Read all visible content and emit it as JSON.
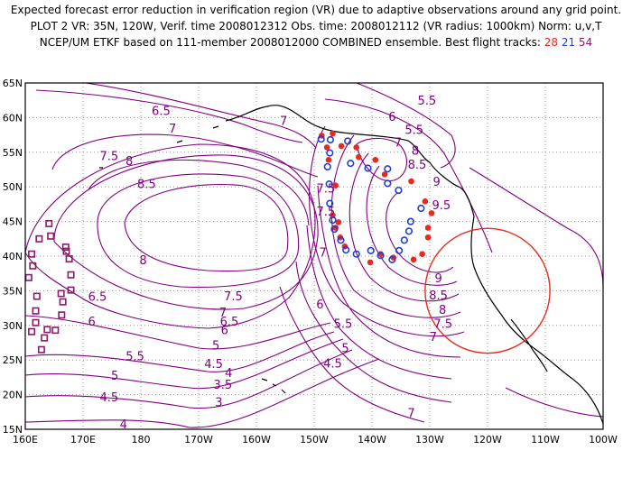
{
  "header": {
    "line1": "Expected forecast error reduction in verification region (VR) due to adaptive observations around any grid point.",
    "line2": "PLOT 2 VR: 35N, 120W, Verif. time 2008012312 Obs. time: 2008012112 (VR radius: 1000km) Norm: u,v,T",
    "line3_prefix": "NCEP/UM ETKF based on 111-member 2008012000 COMBINED ensemble.  Best flight tracks:",
    "track_a": "28",
    "track_b": "21",
    "track_c": "54"
  },
  "colors": {
    "contour": "#800080",
    "coast": "#000000",
    "grid": "#9a9a9a",
    "track_28": "#e8291f",
    "track_21": "#1f3fd8",
    "track_54": "#8b1a6b",
    "verification_circle": "#e8291f"
  },
  "map": {
    "lat_range": [
      15,
      65
    ],
    "lon_range": [
      160,
      260
    ],
    "lat_labels": [
      "65N",
      "60N",
      "55N",
      "50N",
      "45N",
      "40N",
      "35N",
      "30N",
      "25N",
      "20N",
      "15N"
    ],
    "lon_labels": [
      "160E",
      "170E",
      "180",
      "170W",
      "160W",
      "150W",
      "140W",
      "130W",
      "120W",
      "110W",
      "100W"
    ],
    "contour_labels": [
      {
        "text": "6.5",
        "lon": 183.5,
        "lat": 61
      },
      {
        "text": "7",
        "lon": 185.5,
        "lat": 58.5
      },
      {
        "text": "7.5",
        "lon": 174.5,
        "lat": 54.5
      },
      {
        "text": "8",
        "lon": 178,
        "lat": 53.8
      },
      {
        "text": "8.5",
        "lon": 181,
        "lat": 50.5
      },
      {
        "text": "8",
        "lon": 180.4,
        "lat": 39.5
      },
      {
        "text": "7.5",
        "lon": 196,
        "lat": 34.3
      },
      {
        "text": "6.5",
        "lon": 172.5,
        "lat": 34.2
      },
      {
        "text": "7",
        "lon": 194.2,
        "lat": 31.9
      },
      {
        "text": "6",
        "lon": 171.5,
        "lat": 30.6
      },
      {
        "text": "6.5",
        "lon": 195.3,
        "lat": 30.6
      },
      {
        "text": "6",
        "lon": 194.5,
        "lat": 29.4
      },
      {
        "text": "5.5",
        "lon": 179,
        "lat": 25.6
      },
      {
        "text": "5",
        "lon": 193,
        "lat": 27.2
      },
      {
        "text": "4.5",
        "lon": 192.6,
        "lat": 24.5
      },
      {
        "text": "5",
        "lon": 175.5,
        "lat": 22.8
      },
      {
        "text": "4",
        "lon": 195.2,
        "lat": 23.2
      },
      {
        "text": "3.5",
        "lon": 194.2,
        "lat": 21.5
      },
      {
        "text": "4.5",
        "lon": 174.5,
        "lat": 19.7
      },
      {
        "text": "3",
        "lon": 193.5,
        "lat": 19
      },
      {
        "text": "4",
        "lon": 177,
        "lat": 15.8
      },
      {
        "text": "5.5",
        "lon": 229.5,
        "lat": 62.5
      },
      {
        "text": "7",
        "lon": 204.7,
        "lat": 59.6
      },
      {
        "text": "6",
        "lon": 223.5,
        "lat": 60.2
      },
      {
        "text": "5.5",
        "lon": 227.3,
        "lat": 58.3
      },
      {
        "text": "7",
        "lon": 224.5,
        "lat": 56.5
      },
      {
        "text": "8",
        "lon": 227.5,
        "lat": 55.3
      },
      {
        "text": "8.5",
        "lon": 227.8,
        "lat": 53.3
      },
      {
        "text": "9",
        "lon": 231.2,
        "lat": 50.8
      },
      {
        "text": "7.5",
        "lon": 212,
        "lat": 49.8
      },
      {
        "text": "9.5",
        "lon": 232,
        "lat": 47.4
      },
      {
        "text": "7.5",
        "lon": 212,
        "lat": 46.5
      },
      {
        "text": "7",
        "lon": 211.5,
        "lat": 40.6
      },
      {
        "text": "9",
        "lon": 231.5,
        "lat": 36.9
      },
      {
        "text": "8.5",
        "lon": 231.5,
        "lat": 34.4
      },
      {
        "text": "8",
        "lon": 232.2,
        "lat": 32.3
      },
      {
        "text": "7.5",
        "lon": 232.3,
        "lat": 30.3
      },
      {
        "text": "7",
        "lon": 230.6,
        "lat": 28.4
      },
      {
        "text": "6",
        "lon": 211,
        "lat": 33.1
      },
      {
        "text": "5.5",
        "lon": 215,
        "lat": 30.3
      },
      {
        "text": "5",
        "lon": 215.4,
        "lat": 26.8
      },
      {
        "text": "4.5",
        "lon": 213.2,
        "lat": 24.6
      },
      {
        "text": "7",
        "lon": 226.8,
        "lat": 17.4
      }
    ],
    "tracks": {
      "track_28": [
        {
          "lon": 211.3,
          "lat": 57.4
        },
        {
          "lon": 213.2,
          "lat": 57.7
        },
        {
          "lon": 212.2,
          "lat": 55.7
        },
        {
          "lon": 212.5,
          "lat": 53.9
        },
        {
          "lon": 213.7,
          "lat": 50.2
        },
        {
          "lon": 213.2,
          "lat": 45.9
        },
        {
          "lon": 214.2,
          "lat": 44.9
        },
        {
          "lon": 213.7,
          "lat": 44.1
        },
        {
          "lon": 214.5,
          "lat": 42.7
        },
        {
          "lon": 215.3,
          "lat": 41.4
        },
        {
          "lon": 219.7,
          "lat": 39.1
        },
        {
          "lon": 221.5,
          "lat": 40.3
        },
        {
          "lon": 223.7,
          "lat": 39.8
        },
        {
          "lon": 227.2,
          "lat": 39.5
        },
        {
          "lon": 228.7,
          "lat": 40.3
        },
        {
          "lon": 229.7,
          "lat": 42.7
        },
        {
          "lon": 229.7,
          "lat": 44.1
        },
        {
          "lon": 230.3,
          "lat": 46.2
        },
        {
          "lon": 229.2,
          "lat": 47.9
        },
        {
          "lon": 226.8,
          "lat": 50.8
        },
        {
          "lon": 222.2,
          "lat": 51.8
        },
        {
          "lon": 220.6,
          "lat": 53.9
        },
        {
          "lon": 217.7,
          "lat": 54.3
        },
        {
          "lon": 217.3,
          "lat": 55.7
        },
        {
          "lon": 214.7,
          "lat": 55.9
        }
      ],
      "track_21": [
        {
          "lon": 211.2,
          "lat": 56.9
        },
        {
          "lon": 212.8,
          "lat": 56.8
        },
        {
          "lon": 212.7,
          "lat": 54.9
        },
        {
          "lon": 212.3,
          "lat": 52.9
        },
        {
          "lon": 212.6,
          "lat": 50.4
        },
        {
          "lon": 212.7,
          "lat": 47.6
        },
        {
          "lon": 213.2,
          "lat": 45.2
        },
        {
          "lon": 213.5,
          "lat": 43.9
        },
        {
          "lon": 214.6,
          "lat": 42.3
        },
        {
          "lon": 215.5,
          "lat": 40.9
        },
        {
          "lon": 217.3,
          "lat": 40.3
        },
        {
          "lon": 219.8,
          "lat": 40.8
        },
        {
          "lon": 221.5,
          "lat": 40.1
        },
        {
          "lon": 223.5,
          "lat": 39.5
        },
        {
          "lon": 224.7,
          "lat": 40.8
        },
        {
          "lon": 225.6,
          "lat": 42.3
        },
        {
          "lon": 226.4,
          "lat": 43.6
        },
        {
          "lon": 226.7,
          "lat": 45.0
        },
        {
          "lon": 228.5,
          "lat": 46.9
        },
        {
          "lon": 224.6,
          "lat": 49.5
        },
        {
          "lon": 222.7,
          "lat": 50.5
        },
        {
          "lon": 222.7,
          "lat": 52.6
        },
        {
          "lon": 219.3,
          "lat": 52.7
        },
        {
          "lon": 216.3,
          "lat": 53.4
        },
        {
          "lon": 215.8,
          "lat": 56.6
        }
      ],
      "track_54": [
        {
          "lon": 164.1,
          "lat": 44.7
        },
        {
          "lon": 164.4,
          "lat": 42.9
        },
        {
          "lon": 162.4,
          "lat": 42.5
        },
        {
          "lon": 167.0,
          "lat": 41.3
        },
        {
          "lon": 167.1,
          "lat": 40.7
        },
        {
          "lon": 161.1,
          "lat": 40.3
        },
        {
          "lon": 167.6,
          "lat": 39.6
        },
        {
          "lon": 161.3,
          "lat": 38.6
        },
        {
          "lon": 167.9,
          "lat": 37.3
        },
        {
          "lon": 160.6,
          "lat": 36.9
        },
        {
          "lon": 167.9,
          "lat": 35.1
        },
        {
          "lon": 166.2,
          "lat": 34.6
        },
        {
          "lon": 162.0,
          "lat": 34.2
        },
        {
          "lon": 166.5,
          "lat": 33.4
        },
        {
          "lon": 161.8,
          "lat": 32.1
        },
        {
          "lon": 166.3,
          "lat": 31.5
        },
        {
          "lon": 163.8,
          "lat": 29.4
        },
        {
          "lon": 165.2,
          "lat": 29.3
        },
        {
          "lon": 163.3,
          "lat": 28.2
        },
        {
          "lon": 162.8,
          "lat": 26.5
        },
        {
          "lon": 161.8,
          "lat": 30.4
        },
        {
          "lon": 161.1,
          "lat": 29.1
        }
      ]
    },
    "verification_region": {
      "center_lon": 240,
      "center_lat": 35
    }
  }
}
